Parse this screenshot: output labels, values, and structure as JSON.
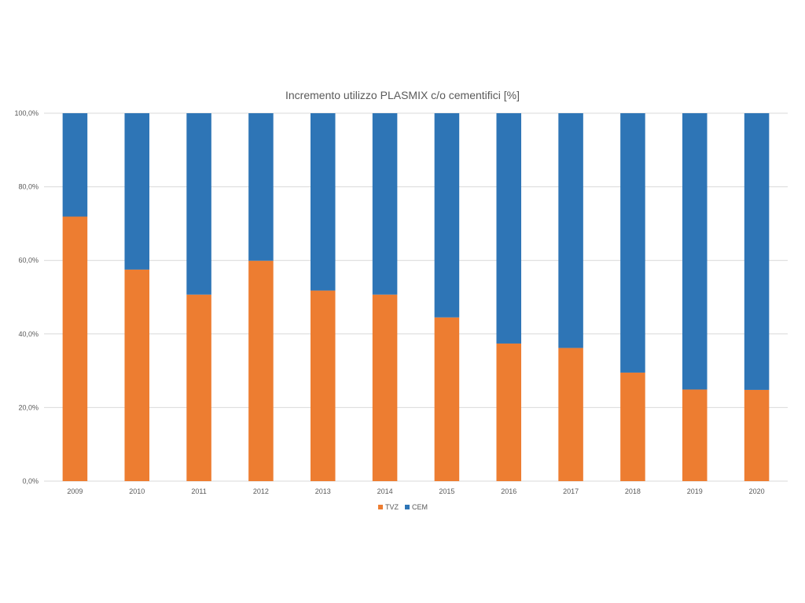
{
  "chart_data": {
    "type": "bar",
    "stacked": true,
    "title": "Incremento utilizzo PLASMIX c/o cementifici [%]",
    "xlabel": "",
    "ylabel": "",
    "categories": [
      "2009",
      "2010",
      "2011",
      "2012",
      "2013",
      "2014",
      "2015",
      "2016",
      "2017",
      "2018",
      "2019",
      "2020"
    ],
    "series": [
      {
        "name": "TVZ",
        "color": "#ED7D31",
        "values": [
          71.9,
          57.5,
          50.7,
          59.9,
          51.8,
          50.7,
          44.5,
          37.4,
          36.2,
          29.5,
          24.9,
          24.8
        ]
      },
      {
        "name": "CEM",
        "color": "#2E75B6",
        "values": [
          28.1,
          42.5,
          49.3,
          40.1,
          48.2,
          49.3,
          55.5,
          62.6,
          63.8,
          70.5,
          75.1,
          75.2
        ]
      }
    ],
    "ylim": [
      0,
      100
    ],
    "yticks": [
      "0,0%",
      "20,0%",
      "40,0%",
      "60,0%",
      "80,0%",
      "100,0%"
    ],
    "grid": true,
    "legend_position": "bottom"
  }
}
